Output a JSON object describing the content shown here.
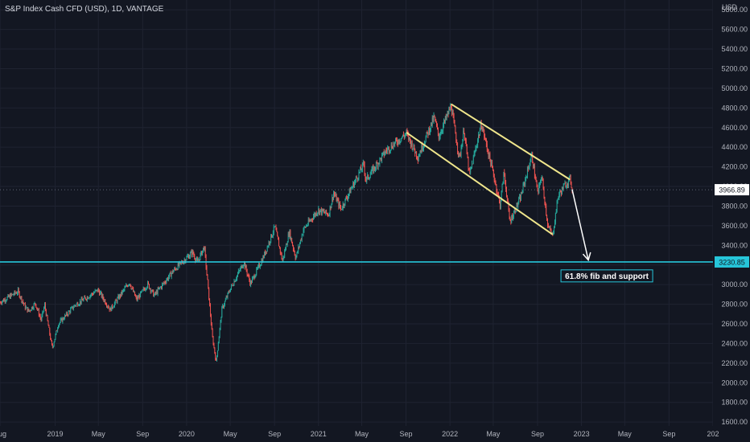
{
  "chart_data": {
    "type": "candlestick",
    "title": "S&P Index Cash CFD (USD), 1D, VANTAGE",
    "currency_label": "USD",
    "y_ticks": [
      1600,
      1800,
      2000,
      2200,
      2400,
      2600,
      2800,
      3000,
      3200,
      3400,
      3600,
      3800,
      4000,
      4200,
      4400,
      4600,
      4800,
      5000,
      5200,
      5400,
      5600,
      5800
    ],
    "y_tick_labels": [
      "1600.00",
      "1800.00",
      "2000.00",
      "2200.00",
      "2400.00",
      "2600.00",
      "2800.00",
      "3000.00",
      "3200.00",
      "3400.00",
      "3600.00",
      "3800.00",
      "4000.00",
      "4200.00",
      "4400.00",
      "4600.00",
      "4800.00",
      "5000.00",
      "5200.00",
      "5400.00",
      "5600.00",
      "5800.00"
    ],
    "ylim": [
      1560,
      5900
    ],
    "xlim": [
      "2018-08-01",
      "2024-01-01"
    ],
    "x_ticks": [
      {
        "date": "2018-08-01",
        "label": "Aug"
      },
      {
        "date": "2019-01-01",
        "label": "2019"
      },
      {
        "date": "2019-05-01",
        "label": "May"
      },
      {
        "date": "2019-09-01",
        "label": "Sep"
      },
      {
        "date": "2020-01-01",
        "label": "2020"
      },
      {
        "date": "2020-05-01",
        "label": "May"
      },
      {
        "date": "2020-09-01",
        "label": "Sep"
      },
      {
        "date": "2021-01-01",
        "label": "2021"
      },
      {
        "date": "2021-05-01",
        "label": "May"
      },
      {
        "date": "2021-09-01",
        "label": "Sep"
      },
      {
        "date": "2022-01-01",
        "label": "2022"
      },
      {
        "date": "2022-05-01",
        "label": "May"
      },
      {
        "date": "2022-09-01",
        "label": "Sep"
      },
      {
        "date": "2023-01-01",
        "label": "2023"
      },
      {
        "date": "2023-05-01",
        "label": "May"
      },
      {
        "date": "2023-09-01",
        "label": "Sep"
      },
      {
        "date": "2024-01-01",
        "label": "202"
      }
    ],
    "price_path": [
      [
        "2018-08-01",
        2820
      ],
      [
        "2018-09-20",
        2930
      ],
      [
        "2018-10-10",
        2770
      ],
      [
        "2018-10-20",
        2730
      ],
      [
        "2018-11-07",
        2810
      ],
      [
        "2018-11-23",
        2640
      ],
      [
        "2018-12-03",
        2790
      ],
      [
        "2018-12-24",
        2350
      ],
      [
        "2019-01-10",
        2600
      ],
      [
        "2019-02-25",
        2790
      ],
      [
        "2019-04-30",
        2945
      ],
      [
        "2019-06-03",
        2745
      ],
      [
        "2019-07-26",
        3025
      ],
      [
        "2019-08-15",
        2845
      ],
      [
        "2019-09-15",
        3005
      ],
      [
        "2019-10-03",
        2890
      ],
      [
        "2019-11-25",
        3140
      ],
      [
        "2020-01-17",
        3330
      ],
      [
        "2020-01-31",
        3225
      ],
      [
        "2020-02-19",
        3390
      ],
      [
        "2020-03-01",
        2950
      ],
      [
        "2020-03-12",
        2480
      ],
      [
        "2020-03-23",
        2210
      ],
      [
        "2020-04-08",
        2750
      ],
      [
        "2020-04-29",
        2940
      ],
      [
        "2020-06-08",
        3230
      ],
      [
        "2020-06-26",
        3010
      ],
      [
        "2020-07-31",
        3270
      ],
      [
        "2020-09-02",
        3590
      ],
      [
        "2020-09-23",
        3240
      ],
      [
        "2020-10-12",
        3540
      ],
      [
        "2020-10-30",
        3270
      ],
      [
        "2020-11-20",
        3560
      ],
      [
        "2020-12-31",
        3760
      ],
      [
        "2021-01-29",
        3715
      ],
      [
        "2021-02-12",
        3935
      ],
      [
        "2021-03-04",
        3770
      ],
      [
        "2021-05-07",
        4230
      ],
      [
        "2021-05-12",
        4060
      ],
      [
        "2021-07-09",
        4370
      ],
      [
        "2021-09-02",
        4540
      ],
      [
        "2021-10-04",
        4300
      ],
      [
        "2021-11-18",
        4705
      ],
      [
        "2021-12-01",
        4510
      ],
      [
        "2022-01-04",
        4820
      ],
      [
        "2022-01-27",
        4280
      ],
      [
        "2022-02-09",
        4580
      ],
      [
        "2022-02-24",
        4110
      ],
      [
        "2022-03-29",
        4640
      ],
      [
        "2022-05-02",
        4120
      ],
      [
        "2022-05-20",
        3810
      ],
      [
        "2022-05-31",
        4150
      ],
      [
        "2022-06-16",
        3640
      ],
      [
        "2022-07-15",
        3880
      ],
      [
        "2022-08-16",
        4320
      ],
      [
        "2022-09-02",
        3920
      ],
      [
        "2022-09-12",
        4120
      ],
      [
        "2022-09-30",
        3590
      ],
      [
        "2022-10-13",
        3500
      ],
      [
        "2022-10-28",
        3900
      ],
      [
        "2022-11-15",
        4010
      ],
      [
        "2022-12-01",
        4080
      ],
      [
        "2022-12-06",
        3970
      ]
    ],
    "annotations": {
      "current_price": {
        "value": 3966.89,
        "label": "3966.89"
      },
      "support_line": {
        "value": 3230.85,
        "label": "3230.85"
      },
      "channel_upper": [
        [
          "2022-01-04",
          4840
        ],
        [
          "2022-11-30",
          4070
        ]
      ],
      "channel_lower": [
        [
          "2021-09-02",
          4550
        ],
        [
          "2022-10-13",
          3510
        ]
      ],
      "projection_arrow": [
        [
          "2022-12-06",
          3970
        ],
        [
          "2023-01-20",
          3250
        ]
      ],
      "note": {
        "text": "61.8% fib and support",
        "date": "2022-11-05",
        "value": 3060
      }
    },
    "colors": {
      "background": "#131722",
      "up": "#26a69a",
      "down": "#ef5350",
      "support": "#26c6da",
      "channel": "#f0e68c",
      "arrow": "#ffffff",
      "tag_price": "#ffffff",
      "tag_support": "#26c6da"
    },
    "grid": true
  }
}
